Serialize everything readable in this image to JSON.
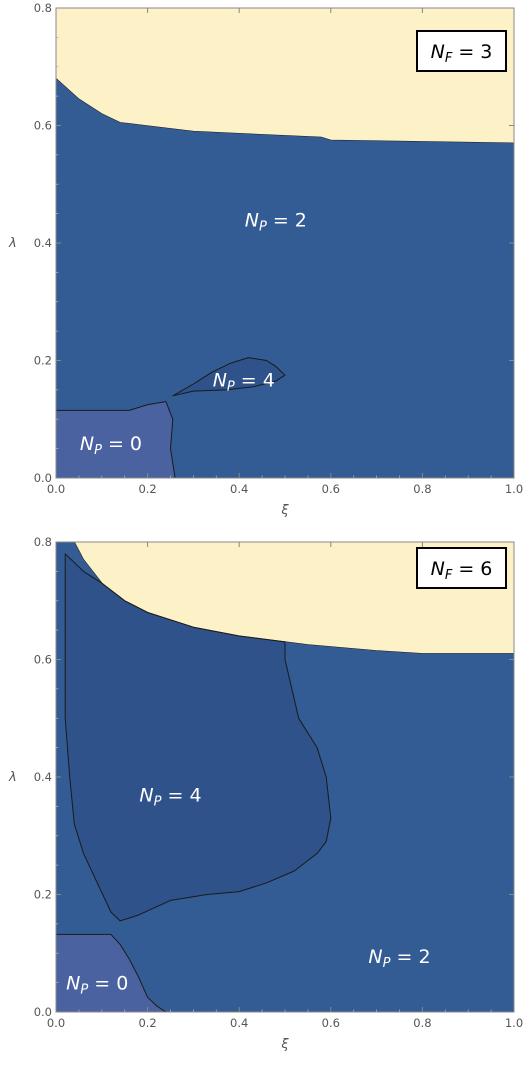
{
  "colors": {
    "NP0": "#4a63a0",
    "NP2": "#345c94",
    "NP4": "#2e5289",
    "unphysical": "#fdf1c7"
  },
  "chart_data": [
    {
      "type": "contour",
      "panel": "top",
      "NF_label": "N_F = 3",
      "xlabel": "ξ",
      "ylabel": "λ",
      "xlim": [
        0,
        1
      ],
      "ylim": [
        0,
        0.8
      ],
      "xticks": [
        "0.0",
        "0.2",
        "0.4",
        "0.6",
        "0.8",
        "1.0"
      ],
      "yticks": [
        "0.0",
        "0.2",
        "0.4",
        "0.6",
        "0.8"
      ],
      "regions": [
        {
          "name": "unphysical",
          "label": "",
          "polygon": [
            [
              0,
              0.8
            ],
            [
              1,
              0.8
            ],
            [
              1,
              0.57
            ],
            [
              0.6,
              0.575
            ],
            [
              0.58,
              0.58
            ],
            [
              0.3,
              0.59
            ],
            [
              0.14,
              0.605
            ],
            [
              0.1,
              0.62
            ],
            [
              0.05,
              0.645
            ],
            [
              0,
              0.68
            ]
          ]
        },
        {
          "name": "NP2",
          "label": "N_P = 2",
          "polygon": [
            [
              0,
              0.68
            ],
            [
              0.05,
              0.645
            ],
            [
              0.1,
              0.62
            ],
            [
              0.14,
              0.605
            ],
            [
              0.3,
              0.59
            ],
            [
              0.58,
              0.58
            ],
            [
              0.6,
              0.575
            ],
            [
              1,
              0.57
            ],
            [
              1,
              0
            ],
            [
              0,
              0
            ]
          ]
        },
        {
          "name": "NP4",
          "label": "N_P = 4",
          "polygon": [
            [
              0.255,
              0.14
            ],
            [
              0.3,
              0.16
            ],
            [
              0.34,
              0.18
            ],
            [
              0.38,
              0.195
            ],
            [
              0.42,
              0.205
            ],
            [
              0.46,
              0.2
            ],
            [
              0.48,
              0.19
            ],
            [
              0.5,
              0.175
            ],
            [
              0.48,
              0.165
            ],
            [
              0.43,
              0.155
            ],
            [
              0.37,
              0.15
            ],
            [
              0.3,
              0.148
            ]
          ]
        },
        {
          "name": "NP0",
          "label": "N_P = 0",
          "polygon": [
            [
              0,
              0
            ],
            [
              0.26,
              0
            ],
            [
              0.25,
              0.05
            ],
            [
              0.255,
              0.1
            ],
            [
              0.24,
              0.13
            ],
            [
              0.2,
              0.125
            ],
            [
              0.16,
              0.115
            ],
            [
              0,
              0.115
            ]
          ]
        }
      ],
      "labels": [
        {
          "text": "N_P = 2",
          "x": 0.48,
          "y": 0.44
        },
        {
          "text": "N_P = 4",
          "x": 0.41,
          "y": 0.168
        },
        {
          "text": "N_P = 0",
          "x": 0.12,
          "y": 0.06
        }
      ]
    },
    {
      "type": "contour",
      "panel": "bottom",
      "NF_label": "N_F = 6",
      "xlabel": "ξ",
      "ylabel": "λ",
      "xlim": [
        0,
        1
      ],
      "ylim": [
        0,
        0.8
      ],
      "xticks": [
        "0.0",
        "0.2",
        "0.4",
        "0.6",
        "0.8",
        "1.0"
      ],
      "yticks": [
        "0.0",
        "0.2",
        "0.4",
        "0.6",
        "0.8"
      ],
      "regions": [
        {
          "name": "unphysical",
          "label": "",
          "polygon": [
            [
              0.03,
              0.8
            ],
            [
              1,
              0.8
            ],
            [
              1,
              0.61
            ],
            [
              0.8,
              0.61
            ],
            [
              0.7,
              0.615
            ],
            [
              0.55,
              0.625
            ],
            [
              0.4,
              0.64
            ],
            [
              0.3,
              0.655
            ],
            [
              0.2,
              0.68
            ],
            [
              0.15,
              0.7
            ],
            [
              0.1,
              0.73
            ],
            [
              0.06,
              0.77
            ],
            [
              0.04,
              0.8
            ]
          ]
        },
        {
          "name": "NP2",
          "label": "N_P = 2",
          "polygon": [
            [
              0,
              0.8
            ],
            [
              0.04,
              0.8
            ],
            [
              0.06,
              0.77
            ],
            [
              0.1,
              0.73
            ],
            [
              0.15,
              0.7
            ],
            [
              0.2,
              0.68
            ],
            [
              0.3,
              0.655
            ],
            [
              0.4,
              0.64
            ],
            [
              0.55,
              0.625
            ],
            [
              0.7,
              0.615
            ],
            [
              0.8,
              0.61
            ],
            [
              1,
              0.61
            ],
            [
              1,
              0
            ],
            [
              0,
              0
            ]
          ]
        },
        {
          "name": "NP4",
          "label": "N_P = 4",
          "polygon": [
            [
              0.02,
              0.78
            ],
            [
              0.06,
              0.75
            ],
            [
              0.1,
              0.73
            ],
            [
              0.15,
              0.7
            ],
            [
              0.2,
              0.68
            ],
            [
              0.3,
              0.655
            ],
            [
              0.4,
              0.64
            ],
            [
              0.5,
              0.63
            ],
            [
              0.5,
              0.6
            ],
            [
              0.53,
              0.5
            ],
            [
              0.57,
              0.45
            ],
            [
              0.59,
              0.4
            ],
            [
              0.6,
              0.33
            ],
            [
              0.59,
              0.29
            ],
            [
              0.57,
              0.27
            ],
            [
              0.52,
              0.24
            ],
            [
              0.46,
              0.22
            ],
            [
              0.4,
              0.205
            ],
            [
              0.33,
              0.2
            ],
            [
              0.25,
              0.19
            ],
            [
              0.18,
              0.165
            ],
            [
              0.14,
              0.155
            ],
            [
              0.12,
              0.17
            ],
            [
              0.09,
              0.22
            ],
            [
              0.06,
              0.27
            ],
            [
              0.04,
              0.32
            ],
            [
              0.03,
              0.4
            ],
            [
              0.02,
              0.5
            ],
            [
              0.02,
              0.6
            ]
          ]
        },
        {
          "name": "NP0",
          "label": "N_P = 0",
          "polygon": [
            [
              0,
              0
            ],
            [
              0.24,
              0
            ],
            [
              0.22,
              0.01
            ],
            [
              0.2,
              0.025
            ],
            [
              0.18,
              0.06
            ],
            [
              0.16,
              0.09
            ],
            [
              0.14,
              0.115
            ],
            [
              0.12,
              0.132
            ],
            [
              0,
              0.132
            ]
          ]
        }
      ],
      "labels": [
        {
          "text": "N_P = 4",
          "x": 0.25,
          "y": 0.37
        },
        {
          "text": "N_P = 2",
          "x": 0.75,
          "y": 0.095
        },
        {
          "text": "N_P = 0",
          "x": 0.09,
          "y": 0.05
        }
      ]
    }
  ]
}
